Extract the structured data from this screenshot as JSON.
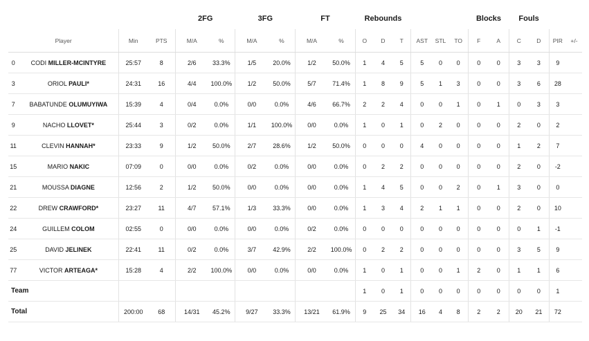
{
  "groups": {
    "fg2": "2FG",
    "fg3": "3FG",
    "ft": "FT",
    "reb": "Rebounds",
    "blk": "Blocks",
    "fouls": "Fouls"
  },
  "headers": {
    "player": "Player",
    "min": "Min",
    "pts": "PTS",
    "ma1": "M/A",
    "pct1": "%",
    "ma2": "M/A",
    "pct2": "%",
    "ma3": "M/A",
    "pct3": "%",
    "o": "O",
    "d": "D",
    "t": "T",
    "ast": "AST",
    "stl": "STL",
    "to": "TO",
    "f": "F",
    "a": "A",
    "c": "C",
    "fd": "D",
    "pir": "PIR",
    "pm": "+/-"
  },
  "players": [
    {
      "num": "0",
      "first": "CODI",
      "last": "MILLER-MCINTYRE",
      "min": "25:57",
      "pts": "8",
      "fg2": "2/6",
      "fg2p": "33.3%",
      "fg3": "1/5",
      "fg3p": "20.0%",
      "ft": "1/2",
      "ftp": "50.0%",
      "o": "1",
      "d": "4",
      "t": "5",
      "ast": "5",
      "stl": "0",
      "to": "0",
      "bf": "0",
      "ba": "0",
      "fc": "3",
      "fd": "3",
      "pir": "9",
      "pm": ""
    },
    {
      "num": "3",
      "first": "ORIOL",
      "last": "PAULI*",
      "min": "24:31",
      "pts": "16",
      "fg2": "4/4",
      "fg2p": "100.0%",
      "fg3": "1/2",
      "fg3p": "50.0%",
      "ft": "5/7",
      "ftp": "71.4%",
      "o": "1",
      "d": "8",
      "t": "9",
      "ast": "5",
      "stl": "1",
      "to": "3",
      "bf": "0",
      "ba": "0",
      "fc": "3",
      "fd": "6",
      "pir": "28",
      "pm": ""
    },
    {
      "num": "7",
      "first": "BABATUNDE",
      "last": "OLUMUYIWA",
      "min": "15:39",
      "pts": "4",
      "fg2": "0/4",
      "fg2p": "0.0%",
      "fg3": "0/0",
      "fg3p": "0.0%",
      "ft": "4/6",
      "ftp": "66.7%",
      "o": "2",
      "d": "2",
      "t": "4",
      "ast": "0",
      "stl": "0",
      "to": "1",
      "bf": "0",
      "ba": "1",
      "fc": "0",
      "fd": "3",
      "pir": "3",
      "pm": ""
    },
    {
      "num": "9",
      "first": "NACHO",
      "last": "LLOVET*",
      "min": "25:44",
      "pts": "3",
      "fg2": "0/2",
      "fg2p": "0.0%",
      "fg3": "1/1",
      "fg3p": "100.0%",
      "ft": "0/0",
      "ftp": "0.0%",
      "o": "1",
      "d": "0",
      "t": "1",
      "ast": "0",
      "stl": "2",
      "to": "0",
      "bf": "0",
      "ba": "0",
      "fc": "2",
      "fd": "0",
      "pir": "2",
      "pm": ""
    },
    {
      "num": "11",
      "first": "CLEVIN",
      "last": "HANNAH*",
      "min": "23:33",
      "pts": "9",
      "fg2": "1/2",
      "fg2p": "50.0%",
      "fg3": "2/7",
      "fg3p": "28.6%",
      "ft": "1/2",
      "ftp": "50.0%",
      "o": "0",
      "d": "0",
      "t": "0",
      "ast": "4",
      "stl": "0",
      "to": "0",
      "bf": "0",
      "ba": "0",
      "fc": "1",
      "fd": "2",
      "pir": "7",
      "pm": ""
    },
    {
      "num": "15",
      "first": "MARIO",
      "last": "NAKIC",
      "min": "07:09",
      "pts": "0",
      "fg2": "0/0",
      "fg2p": "0.0%",
      "fg3": "0/2",
      "fg3p": "0.0%",
      "ft": "0/0",
      "ftp": "0.0%",
      "o": "0",
      "d": "2",
      "t": "2",
      "ast": "0",
      "stl": "0",
      "to": "0",
      "bf": "0",
      "ba": "0",
      "fc": "2",
      "fd": "0",
      "pir": "-2",
      "pm": ""
    },
    {
      "num": "21",
      "first": "MOUSSA",
      "last": "DIAGNE",
      "min": "12:56",
      "pts": "2",
      "fg2": "1/2",
      "fg2p": "50.0%",
      "fg3": "0/0",
      "fg3p": "0.0%",
      "ft": "0/0",
      "ftp": "0.0%",
      "o": "1",
      "d": "4",
      "t": "5",
      "ast": "0",
      "stl": "0",
      "to": "2",
      "bf": "0",
      "ba": "1",
      "fc": "3",
      "fd": "0",
      "pir": "0",
      "pm": ""
    },
    {
      "num": "22",
      "first": "DREW",
      "last": "CRAWFORD*",
      "min": "23:27",
      "pts": "11",
      "fg2": "4/7",
      "fg2p": "57.1%",
      "fg3": "1/3",
      "fg3p": "33.3%",
      "ft": "0/0",
      "ftp": "0.0%",
      "o": "1",
      "d": "3",
      "t": "4",
      "ast": "2",
      "stl": "1",
      "to": "1",
      "bf": "0",
      "ba": "0",
      "fc": "2",
      "fd": "0",
      "pir": "10",
      "pm": ""
    },
    {
      "num": "24",
      "first": "GUILLEM",
      "last": "COLOM",
      "min": "02:55",
      "pts": "0",
      "fg2": "0/0",
      "fg2p": "0.0%",
      "fg3": "0/0",
      "fg3p": "0.0%",
      "ft": "0/2",
      "ftp": "0.0%",
      "o": "0",
      "d": "0",
      "t": "0",
      "ast": "0",
      "stl": "0",
      "to": "0",
      "bf": "0",
      "ba": "0",
      "fc": "0",
      "fd": "1",
      "pir": "-1",
      "pm": ""
    },
    {
      "num": "25",
      "first": "DAVID",
      "last": "JELINEK",
      "min": "22:41",
      "pts": "11",
      "fg2": "0/2",
      "fg2p": "0.0%",
      "fg3": "3/7",
      "fg3p": "42.9%",
      "ft": "2/2",
      "ftp": "100.0%",
      "o": "0",
      "d": "2",
      "t": "2",
      "ast": "0",
      "stl": "0",
      "to": "0",
      "bf": "0",
      "ba": "0",
      "fc": "3",
      "fd": "5",
      "pir": "9",
      "pm": ""
    },
    {
      "num": "77",
      "first": "VICTOR",
      "last": "ARTEAGA*",
      "min": "15:28",
      "pts": "4",
      "fg2": "2/2",
      "fg2p": "100.0%",
      "fg3": "0/0",
      "fg3p": "0.0%",
      "ft": "0/0",
      "ftp": "0.0%",
      "o": "1",
      "d": "0",
      "t": "1",
      "ast": "0",
      "stl": "0",
      "to": "1",
      "bf": "2",
      "ba": "0",
      "fc": "1",
      "fd": "1",
      "pir": "6",
      "pm": ""
    }
  ],
  "team": {
    "label": "Team",
    "o": "1",
    "d": "0",
    "t": "1",
    "ast": "0",
    "stl": "0",
    "to": "0",
    "bf": "0",
    "ba": "0",
    "fc": "0",
    "fd": "0",
    "pir": "1"
  },
  "total": {
    "label": "Total",
    "min": "200:00",
    "pts": "68",
    "fg2": "14/31",
    "fg2p": "45.2%",
    "fg3": "9/27",
    "fg3p": "33.3%",
    "ft": "13/21",
    "ftp": "61.9%",
    "o": "9",
    "d": "25",
    "t": "34",
    "ast": "16",
    "stl": "4",
    "to": "8",
    "bf": "2",
    "ba": "2",
    "fc": "20",
    "fd": "21",
    "pir": "72"
  }
}
